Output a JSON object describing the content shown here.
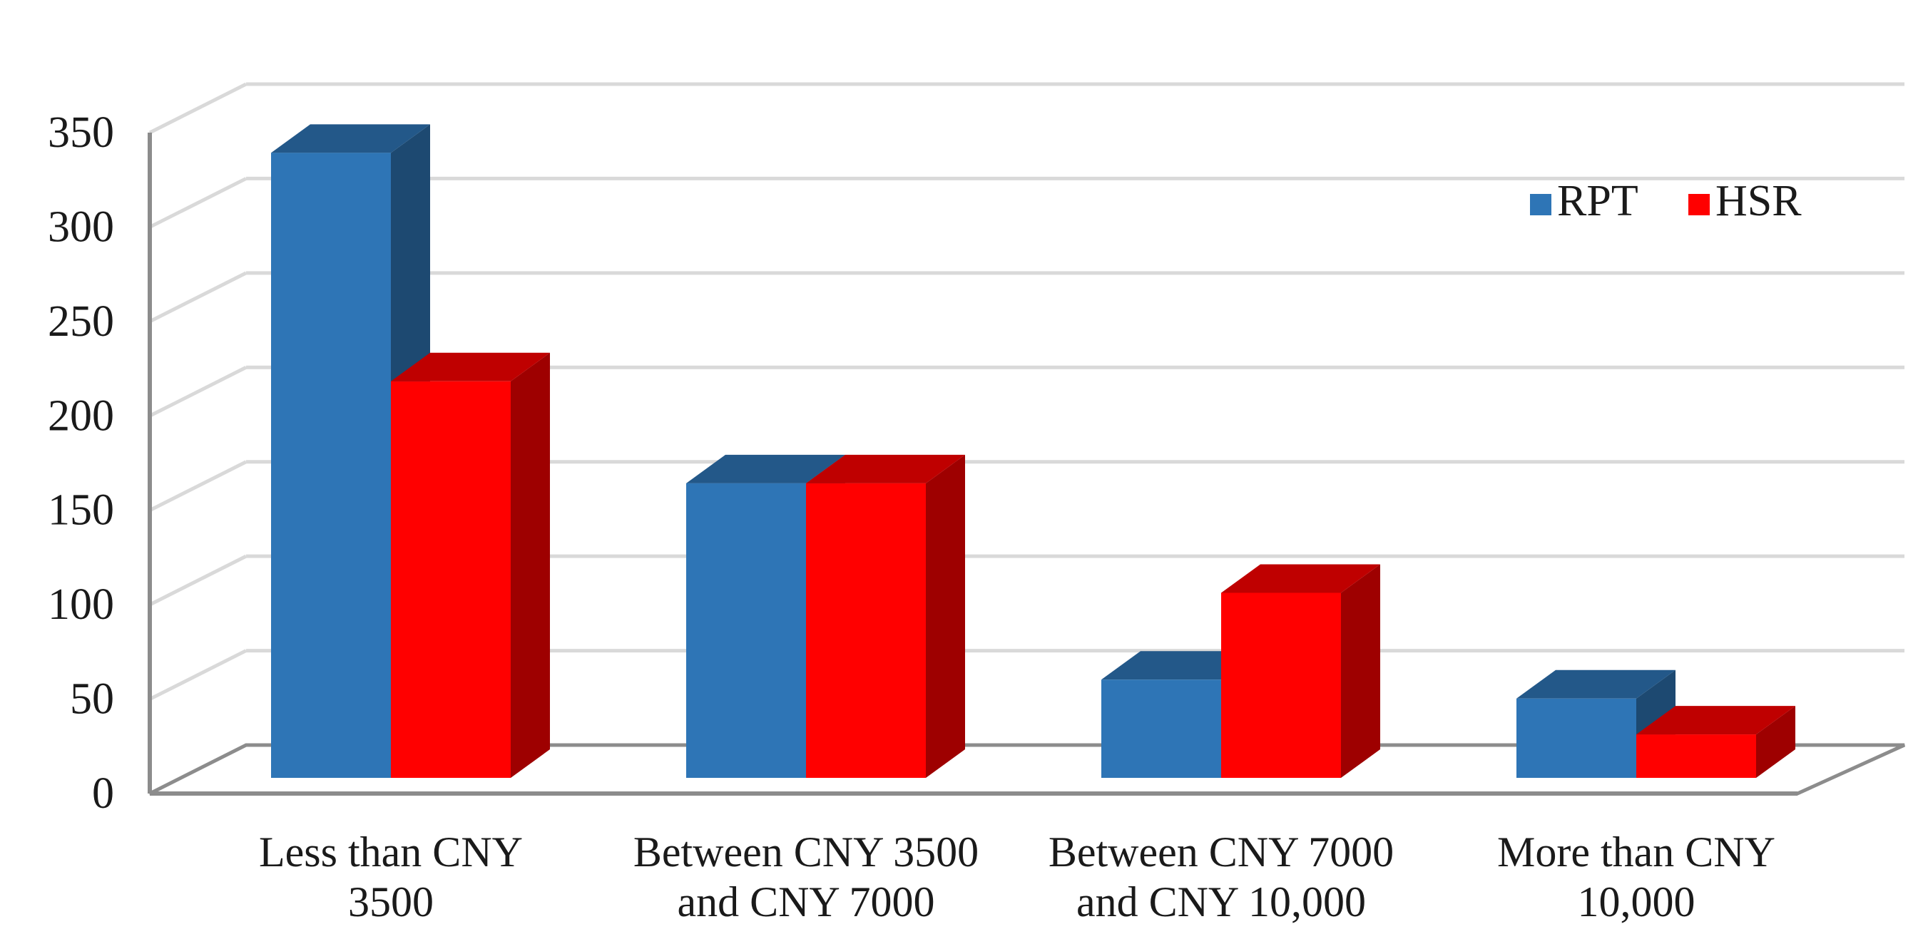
{
  "chart_data": {
    "type": "bar",
    "categories": [
      [
        "Less than CNY",
        "3500"
      ],
      [
        "Between CNY 3500",
        "and CNY 7000"
      ],
      [
        "Between CNY 7000",
        "and CNY 10,000"
      ],
      [
        "More than CNY",
        "10,000"
      ]
    ],
    "series": [
      {
        "name": "RPT",
        "values": [
          331,
          156,
          52,
          42
        ],
        "color": "#2E75B6"
      },
      {
        "name": "HSR",
        "values": [
          210,
          156,
          98,
          23
        ],
        "color": "#FF0000"
      }
    ],
    "ylim": [
      0,
      350
    ],
    "yticks": [
      0,
      50,
      100,
      150,
      200,
      250,
      300,
      350
    ],
    "grid": true,
    "legend_position": "top-right",
    "style": "3d"
  }
}
